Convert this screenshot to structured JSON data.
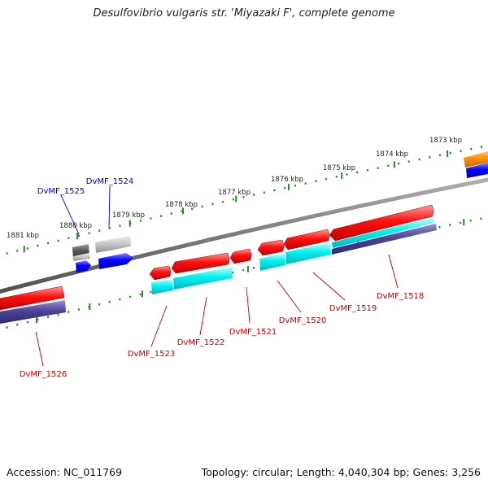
{
  "title": "Desulfovibrio vulgaris str. 'Miyazaki F', complete genome",
  "footer": {
    "accession": "Accession: NC_011769",
    "summary": "Topology: circular; Length: 4,040,304 bp; Genes: 3,256"
  },
  "colors": {
    "backbone": "#808080",
    "forward_gene": "#e31a1c",
    "reverse_gene": "#0000ff",
    "cds_cyan": "#00e5e5",
    "cds_slate": "#4a4494",
    "other_dark": "#555555",
    "other_light": "#b8b8b8",
    "partial_orange": "#ff8c00",
    "tick": "#228b22",
    "label_red": "#cc0000",
    "label_blue": "#0000cc"
  },
  "scale_labels": [
    "1873 kbp",
    "1874 kbp",
    "1875 kbp",
    "1876 kbp",
    "1877 kbp",
    "1878 kbp",
    "1879 kbp",
    "1880 kbp",
    "1881 kbp"
  ],
  "gene_labels": [
    "DvMF_1518",
    "DvMF_1519",
    "DvMF_1520",
    "DvMF_1521",
    "DvMF_1522",
    "DvMF_1523",
    "DvMF_1524",
    "DvMF_1525",
    "DvMF_1526"
  ]
}
